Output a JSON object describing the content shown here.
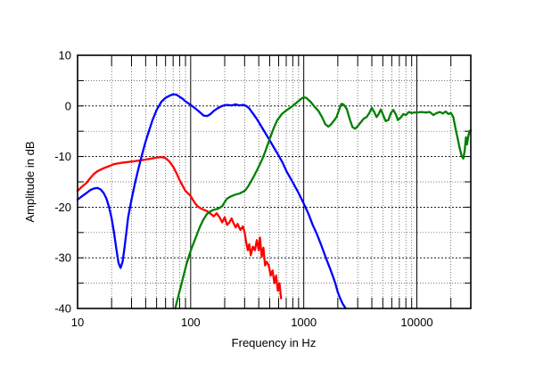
{
  "chart_data": {
    "type": "line",
    "xlabel": "Frequency in Hz",
    "ylabel": "Amplitude in dB",
    "x_scale": "log",
    "xlim": [
      10,
      30000
    ],
    "ylim": [
      -40,
      10
    ],
    "grid": true,
    "x_tick_labels": [
      {
        "value": 10,
        "label": "10"
      },
      {
        "value": 100,
        "label": "100"
      },
      {
        "value": 1000,
        "label": "1000"
      },
      {
        "value": 10000,
        "label": "10000"
      }
    ],
    "y_tick_labels": [
      {
        "value": 10,
        "label": "10"
      },
      {
        "value": 0,
        "label": "0"
      },
      {
        "value": -10,
        "label": "-10"
      },
      {
        "value": -20,
        "label": "-20"
      },
      {
        "value": -30,
        "label": "-30"
      },
      {
        "value": -40,
        "label": "-40"
      }
    ],
    "series": [
      {
        "color": "#ff0000",
        "points": [
          [
            10,
            -16.8
          ],
          [
            11,
            -15.9
          ],
          [
            12,
            -15.2
          ],
          [
            13,
            -14.2
          ],
          [
            14,
            -13.4
          ],
          [
            15,
            -12.9
          ],
          [
            17,
            -12.3
          ],
          [
            19,
            -11.9
          ],
          [
            21,
            -11.5
          ],
          [
            25,
            -11.2
          ],
          [
            30,
            -11.0
          ],
          [
            35,
            -10.8
          ],
          [
            40,
            -10.6
          ],
          [
            45,
            -10.4
          ],
          [
            50,
            -10.2
          ],
          [
            55,
            -10.1
          ],
          [
            60,
            -10.3
          ],
          [
            65,
            -11.0
          ],
          [
            70,
            -12.0
          ],
          [
            75,
            -13.3
          ],
          [
            80,
            -14.7
          ],
          [
            85,
            -15.8
          ],
          [
            90,
            -16.8
          ],
          [
            95,
            -17.3
          ],
          [
            100,
            -17.8
          ],
          [
            105,
            -18.6
          ],
          [
            110,
            -19.3
          ],
          [
            115,
            -19.8
          ],
          [
            120,
            -20.1
          ],
          [
            130,
            -20.5
          ],
          [
            140,
            -20.8
          ],
          [
            150,
            -21.3
          ],
          [
            160,
            -21.8
          ],
          [
            170,
            -21.2
          ],
          [
            180,
            -22.0
          ],
          [
            190,
            -23.0
          ],
          [
            200,
            -22.0
          ],
          [
            210,
            -23.5
          ],
          [
            220,
            -23.0
          ],
          [
            230,
            -22.2
          ],
          [
            240,
            -23.2
          ],
          [
            250,
            -24.0
          ],
          [
            260,
            -23.3
          ],
          [
            275,
            -24.5
          ],
          [
            290,
            -23.8
          ],
          [
            300,
            -25.0
          ],
          [
            310,
            -27.0
          ],
          [
            320,
            -28.5
          ],
          [
            330,
            -27.3
          ],
          [
            340,
            -29.5
          ],
          [
            355,
            -27.8
          ],
          [
            370,
            -28.5
          ],
          [
            385,
            -26.5
          ],
          [
            400,
            -28.5
          ],
          [
            410,
            -26.0
          ],
          [
            425,
            -29.8
          ],
          [
            440,
            -28.0
          ],
          [
            455,
            -31.5
          ],
          [
            470,
            -30.8
          ],
          [
            490,
            -31.5
          ],
          [
            510,
            -33.5
          ],
          [
            530,
            -32.5
          ],
          [
            550,
            -35.0
          ],
          [
            570,
            -33.5
          ],
          [
            590,
            -36.5
          ],
          [
            610,
            -35.0
          ],
          [
            630,
            -38.0
          ]
        ]
      },
      {
        "color": "#0000ff",
        "points": [
          [
            10,
            -18.5
          ],
          [
            11,
            -17.8
          ],
          [
            12,
            -17.2
          ],
          [
            13,
            -16.6
          ],
          [
            14,
            -16.3
          ],
          [
            15,
            -16.2
          ],
          [
            16,
            -16.5
          ],
          [
            17,
            -17.2
          ],
          [
            18,
            -18.3
          ],
          [
            19,
            -20.0
          ],
          [
            20,
            -22.2
          ],
          [
            21,
            -25.0
          ],
          [
            22,
            -28.2
          ],
          [
            23,
            -31.0
          ],
          [
            24,
            -32.0
          ],
          [
            25,
            -30.8
          ],
          [
            26,
            -28.0
          ],
          [
            27,
            -25.0
          ],
          [
            28,
            -22.0
          ],
          [
            30,
            -18.5
          ],
          [
            32,
            -15.5
          ],
          [
            34,
            -13.0
          ],
          [
            36,
            -10.8
          ],
          [
            38,
            -8.8
          ],
          [
            40,
            -7.0
          ],
          [
            43,
            -4.8
          ],
          [
            46,
            -2.8
          ],
          [
            50,
            -0.8
          ],
          [
            55,
            0.8
          ],
          [
            60,
            1.6
          ],
          [
            65,
            2.0
          ],
          [
            70,
            2.3
          ],
          [
            75,
            2.2
          ],
          [
            80,
            1.8
          ],
          [
            85,
            1.4
          ],
          [
            90,
            0.9
          ],
          [
            100,
            0.2
          ],
          [
            110,
            -0.5
          ],
          [
            120,
            -1.2
          ],
          [
            130,
            -1.9
          ],
          [
            140,
            -2.0
          ],
          [
            150,
            -1.6
          ],
          [
            160,
            -1.0
          ],
          [
            175,
            -0.4
          ],
          [
            190,
            0.0
          ],
          [
            210,
            0.2
          ],
          [
            230,
            0.1
          ],
          [
            250,
            0.3
          ],
          [
            270,
            0.1
          ],
          [
            290,
            0.2
          ],
          [
            310,
            0.0
          ],
          [
            330,
            -0.5
          ],
          [
            350,
            -1.3
          ],
          [
            380,
            -2.4
          ],
          [
            410,
            -3.6
          ],
          [
            450,
            -5.1
          ],
          [
            500,
            -6.8
          ],
          [
            550,
            -8.4
          ],
          [
            600,
            -9.8
          ],
          [
            650,
            -11.2
          ],
          [
            700,
            -12.8
          ],
          [
            750,
            -14.0
          ],
          [
            800,
            -15.1
          ],
          [
            900,
            -17.2
          ],
          [
            1000,
            -19.3
          ],
          [
            1100,
            -21.3
          ],
          [
            1200,
            -23.5
          ],
          [
            1300,
            -25.2
          ],
          [
            1400,
            -27.0
          ],
          [
            1500,
            -28.8
          ],
          [
            1600,
            -30.5
          ],
          [
            1700,
            -32.0
          ],
          [
            1800,
            -33.5
          ],
          [
            1900,
            -35.0
          ],
          [
            2000,
            -36.8
          ],
          [
            2100,
            -38.0
          ],
          [
            2200,
            -39.0
          ],
          [
            2350,
            -40.0
          ]
        ]
      },
      {
        "color": "#008000",
        "points": [
          [
            73,
            -40.0
          ],
          [
            78,
            -37.5
          ],
          [
            85,
            -34.2
          ],
          [
            92,
            -31.2
          ],
          [
            100,
            -28.6
          ],
          [
            110,
            -26.2
          ],
          [
            120,
            -24.0
          ],
          [
            130,
            -22.4
          ],
          [
            140,
            -21.3
          ],
          [
            150,
            -20.8
          ],
          [
            160,
            -20.5
          ],
          [
            175,
            -20.3
          ],
          [
            190,
            -19.8
          ],
          [
            200,
            -19.0
          ],
          [
            210,
            -18.3
          ],
          [
            230,
            -17.8
          ],
          [
            250,
            -17.5
          ],
          [
            270,
            -17.3
          ],
          [
            300,
            -16.8
          ],
          [
            320,
            -16.0
          ],
          [
            340,
            -15.0
          ],
          [
            360,
            -14.0
          ],
          [
            380,
            -13.0
          ],
          [
            400,
            -12.0
          ],
          [
            430,
            -10.5
          ],
          [
            460,
            -8.8
          ],
          [
            500,
            -6.5
          ],
          [
            540,
            -4.5
          ],
          [
            580,
            -2.9
          ],
          [
            640,
            -1.6
          ],
          [
            700,
            -0.9
          ],
          [
            800,
            0.0
          ],
          [
            880,
            0.8
          ],
          [
            950,
            1.4
          ],
          [
            1000,
            1.7
          ],
          [
            1050,
            1.6
          ],
          [
            1150,
            0.8
          ],
          [
            1250,
            -0.2
          ],
          [
            1350,
            -1.0
          ],
          [
            1450,
            -2.2
          ],
          [
            1550,
            -3.6
          ],
          [
            1650,
            -4.1
          ],
          [
            1750,
            -3.6
          ],
          [
            1850,
            -2.9
          ],
          [
            1950,
            -2.2
          ],
          [
            2050,
            -0.8
          ],
          [
            2150,
            0.4
          ],
          [
            2250,
            0.3
          ],
          [
            2400,
            -0.6
          ],
          [
            2550,
            -2.6
          ],
          [
            2700,
            -4.2
          ],
          [
            2850,
            -4.5
          ],
          [
            3000,
            -4.0
          ],
          [
            3200,
            -3.2
          ],
          [
            3400,
            -2.5
          ],
          [
            3600,
            -2.2
          ],
          [
            3800,
            -1.4
          ],
          [
            4000,
            -0.4
          ],
          [
            4200,
            -1.2
          ],
          [
            4400,
            -2.2
          ],
          [
            4600,
            -1.6
          ],
          [
            4800,
            -0.7
          ],
          [
            5000,
            -1.6
          ],
          [
            5300,
            -3.0
          ],
          [
            5600,
            -2.8
          ],
          [
            5900,
            -1.4
          ],
          [
            6200,
            -0.8
          ],
          [
            6500,
            -1.6
          ],
          [
            6800,
            -2.8
          ],
          [
            7200,
            -2.3
          ],
          [
            7600,
            -1.6
          ],
          [
            8000,
            -1.8
          ],
          [
            8500,
            -1.2
          ],
          [
            9000,
            -1.4
          ],
          [
            9500,
            -1.3
          ],
          [
            10000,
            -1.3
          ],
          [
            11000,
            -1.2
          ],
          [
            12000,
            -1.3
          ],
          [
            13000,
            -1.2
          ],
          [
            14000,
            -1.8
          ],
          [
            15000,
            -1.4
          ],
          [
            16000,
            -1.2
          ],
          [
            17000,
            -1.5
          ],
          [
            18000,
            -1.1
          ],
          [
            19000,
            -1.6
          ],
          [
            20000,
            -1.4
          ],
          [
            21000,
            -2.2
          ],
          [
            22000,
            -4.5
          ],
          [
            23000,
            -6.5
          ],
          [
            24000,
            -8.5
          ],
          [
            25000,
            -10.0
          ],
          [
            25800,
            -10.4
          ],
          [
            26500,
            -8.8
          ],
          [
            27200,
            -6.2
          ],
          [
            27800,
            -7.6
          ],
          [
            28500,
            -6.0
          ],
          [
            29200,
            -5.0
          ],
          [
            30000,
            -4.8
          ]
        ]
      }
    ]
  }
}
